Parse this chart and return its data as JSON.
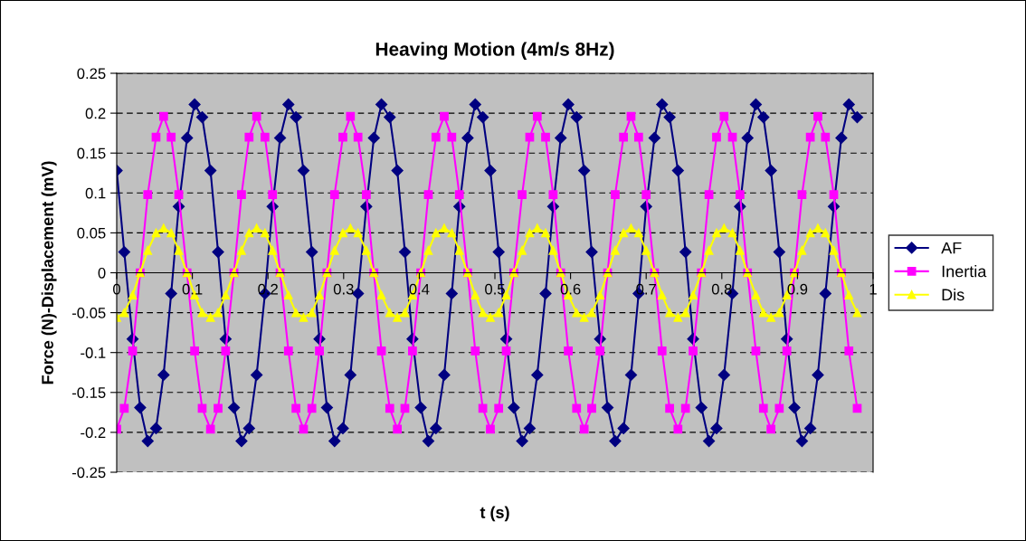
{
  "chart_data": {
    "type": "line",
    "title": "Heaving Motion (4m/s 8Hz)",
    "xlabel": "t (s)",
    "ylabel": "Force (N)-Displacement (mV)",
    "x": [
      0,
      0.01,
      0.021,
      0.031,
      0.041,
      0.052,
      0.062,
      0.072,
      0.082,
      0.093,
      0.103,
      0.113,
      0.124,
      0.134,
      0.144,
      0.155,
      0.165,
      0.175,
      0.185,
      0.196,
      0.206,
      0.216,
      0.227,
      0.237,
      0.247,
      0.258,
      0.268,
      0.278,
      0.288,
      0.299,
      0.309,
      0.319,
      0.33,
      0.34,
      0.35,
      0.361,
      0.371,
      0.381,
      0.391,
      0.402,
      0.412,
      0.422,
      0.433,
      0.443,
      0.453,
      0.464,
      0.474,
      0.484,
      0.494,
      0.505,
      0.515,
      0.525,
      0.536,
      0.546,
      0.556,
      0.567,
      0.577,
      0.587,
      0.597,
      0.608,
      0.618,
      0.628,
      0.639,
      0.649,
      0.659,
      0.67,
      0.68,
      0.69,
      0.7,
      0.711,
      0.721,
      0.731,
      0.742,
      0.752,
      0.762,
      0.773,
      0.783,
      0.793,
      0.803,
      0.814,
      0.824,
      0.834,
      0.845,
      0.855,
      0.865,
      0.876,
      0.886,
      0.896,
      0.906,
      0.917,
      0.927,
      0.937,
      0.948,
      0.958,
      0.968,
      0.979
    ],
    "series": [
      {
        "name": "AF",
        "color": "#000080",
        "marker": "diamond",
        "values": [
          0.128,
          0.026,
          -0.083,
          -0.169,
          -0.211,
          -0.195,
          -0.128,
          -0.026,
          0.083,
          0.169,
          0.211,
          0.195,
          0.128,
          0.026,
          -0.083,
          -0.169,
          -0.211,
          -0.195,
          -0.128,
          -0.026,
          0.083,
          0.169,
          0.211,
          0.195,
          0.128,
          0.026,
          -0.083,
          -0.169,
          -0.211,
          -0.195,
          -0.128,
          -0.026,
          0.083,
          0.169,
          0.211,
          0.195,
          0.128,
          0.026,
          -0.083,
          -0.169,
          -0.211,
          -0.195,
          -0.128,
          -0.026,
          0.083,
          0.169,
          0.211,
          0.195,
          0.128,
          0.026,
          -0.083,
          -0.169,
          -0.211,
          -0.195,
          -0.128,
          -0.026,
          0.083,
          0.169,
          0.211,
          0.195,
          0.128,
          0.026,
          -0.083,
          -0.169,
          -0.211,
          -0.195,
          -0.128,
          -0.026,
          0.083,
          0.169,
          0.211,
          0.195,
          0.128,
          0.026,
          -0.083,
          -0.169,
          -0.211,
          -0.195,
          -0.128,
          -0.026,
          0.083,
          0.169,
          0.211,
          0.195,
          0.128,
          0.026,
          -0.083,
          -0.169,
          -0.211,
          -0.195,
          -0.128,
          -0.026,
          0.083,
          0.169,
          0.211,
          0.195
        ]
      },
      {
        "name": "Inertia",
        "color": "#ff00ff",
        "marker": "square",
        "values": [
          -0.196,
          -0.17,
          -0.098,
          0,
          0.098,
          0.17,
          0.196,
          0.17,
          0.098,
          0,
          -0.098,
          -0.17,
          -0.196,
          -0.17,
          -0.098,
          0,
          0.098,
          0.17,
          0.196,
          0.17,
          0.098,
          0,
          -0.098,
          -0.17,
          -0.196,
          -0.17,
          -0.098,
          0,
          0.098,
          0.17,
          0.196,
          0.17,
          0.098,
          0,
          -0.098,
          -0.17,
          -0.196,
          -0.17,
          -0.098,
          0,
          0.098,
          0.17,
          0.196,
          0.17,
          0.098,
          0,
          -0.098,
          -0.17,
          -0.196,
          -0.17,
          -0.098,
          0,
          0.098,
          0.17,
          0.196,
          0.17,
          0.098,
          0,
          -0.098,
          -0.17,
          -0.196,
          -0.17,
          -0.098,
          0,
          0.098,
          0.17,
          0.196,
          0.17,
          0.098,
          0,
          -0.098,
          -0.17,
          -0.196,
          -0.17,
          -0.098,
          0,
          0.098,
          0.17,
          0.196,
          0.17,
          0.098,
          0,
          -0.098,
          -0.17,
          -0.196,
          -0.17,
          -0.098,
          0,
          0.098,
          0.17,
          0.196,
          0.17,
          0.098,
          0,
          -0.098,
          -0.17
        ]
      },
      {
        "name": "Dis",
        "color": "#ffff00",
        "marker": "triangle",
        "values": [
          -0.056,
          -0.05,
          -0.028,
          0,
          0.028,
          0.05,
          0.056,
          0.05,
          0.028,
          0,
          -0.028,
          -0.05,
          -0.056,
          -0.05,
          -0.028,
          0,
          0.028,
          0.05,
          0.056,
          0.05,
          0.028,
          0,
          -0.028,
          -0.05,
          -0.056,
          -0.05,
          -0.028,
          0,
          0.028,
          0.05,
          0.056,
          0.05,
          0.028,
          0,
          -0.028,
          -0.05,
          -0.056,
          -0.05,
          -0.028,
          0,
          0.028,
          0.05,
          0.056,
          0.05,
          0.028,
          0,
          -0.028,
          -0.05,
          -0.056,
          -0.05,
          -0.028,
          0,
          0.028,
          0.05,
          0.056,
          0.05,
          0.028,
          0,
          -0.028,
          -0.05,
          -0.056,
          -0.05,
          -0.028,
          0,
          0.028,
          0.05,
          0.056,
          0.05,
          0.028,
          0,
          -0.028,
          -0.05,
          -0.056,
          -0.05,
          -0.028,
          0,
          0.028,
          0.05,
          0.056,
          0.05,
          0.028,
          0,
          -0.028,
          -0.05,
          -0.056,
          -0.05,
          -0.028,
          0,
          0.028,
          0.05,
          0.056,
          0.05,
          0.028,
          0,
          -0.028,
          -0.05
        ]
      }
    ],
    "xlim": [
      0,
      1
    ],
    "xticks": [
      0,
      0.1,
      0.2,
      0.3,
      0.4,
      0.5,
      0.6,
      0.7,
      0.8,
      0.9,
      1
    ],
    "ylim": [
      -0.25,
      0.25
    ],
    "yticks": [
      -0.25,
      -0.2,
      -0.15,
      -0.1,
      -0.05,
      0,
      0.05,
      0.1,
      0.15,
      0.2,
      0.25
    ],
    "grid": "y",
    "legend": "right",
    "line_style": "solid"
  }
}
